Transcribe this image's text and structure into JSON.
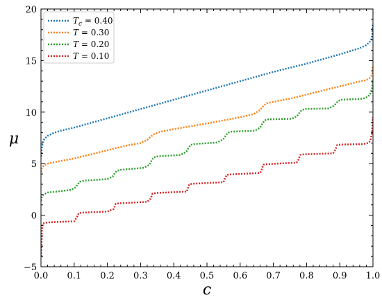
{
  "chart_data": {
    "type": "line",
    "xlabel": "c",
    "ylabel": "μ",
    "xlim": [
      0.0,
      1.0
    ],
    "ylim": [
      -5,
      20
    ],
    "xticks": [
      "0.0",
      "0.1",
      "0.2",
      "0.3",
      "0.4",
      "0.5",
      "0.6",
      "0.7",
      "0.8",
      "0.9",
      "1.0"
    ],
    "yticks": [
      "−5",
      "0",
      "5",
      "10",
      "15",
      "20"
    ],
    "legend_position": "top-left",
    "grid": false,
    "series": [
      {
        "name_var": "T",
        "name_sub": "c",
        "name_rest": " = 0.40",
        "color": "#1f77b4",
        "x": [
          0.0005,
          0.002,
          0.005,
          0.01,
          0.02,
          0.04,
          0.06,
          0.08,
          0.1,
          0.2,
          0.3,
          0.4,
          0.5,
          0.6,
          0.7,
          0.8,
          0.9,
          0.94,
          0.96,
          0.98,
          0.99,
          0.995,
          0.998,
          0.9995
        ],
        "values": [
          5.7,
          6.4,
          7.0,
          7.4,
          7.7,
          8.0,
          8.2,
          8.35,
          8.5,
          9.4,
          10.3,
          11.2,
          12.1,
          13.0,
          13.9,
          14.7,
          15.6,
          16.0,
          16.2,
          16.5,
          16.8,
          17.1,
          17.6,
          18.6
        ]
      },
      {
        "name_var": "T",
        "name_sub": "",
        "name_rest": " = 0.30",
        "color": "#ff7f0e",
        "x": [
          0.0005,
          0.002,
          0.005,
          0.01,
          0.02,
          0.05,
          0.1,
          0.15,
          0.2,
          0.25,
          0.3,
          0.32,
          0.33,
          0.34,
          0.36,
          0.4,
          0.5,
          0.6,
          0.64,
          0.66,
          0.67,
          0.68,
          0.7,
          0.75,
          0.8,
          0.85,
          0.9,
          0.95,
          0.98,
          0.99,
          0.995,
          0.998,
          0.9995
        ],
        "values": [
          4.2,
          4.5,
          4.7,
          4.85,
          5.0,
          5.2,
          5.5,
          5.9,
          6.3,
          6.7,
          7.0,
          7.3,
          7.6,
          7.85,
          8.1,
          8.35,
          8.9,
          9.5,
          9.8,
          10.2,
          10.6,
          10.85,
          11.0,
          11.3,
          11.7,
          12.1,
          12.5,
          12.9,
          13.1,
          13.3,
          13.5,
          13.8,
          14.4
        ]
      },
      {
        "name_var": "T",
        "name_sub": "",
        "name_rest": " = 0.20",
        "color": "#2ca02c",
        "x": [
          0.0005,
          0.002,
          0.005,
          0.01,
          0.02,
          0.05,
          0.09,
          0.105,
          0.111,
          0.117,
          0.13,
          0.2,
          0.216,
          0.222,
          0.228,
          0.24,
          0.31,
          0.327,
          0.333,
          0.339,
          0.35,
          0.42,
          0.438,
          0.444,
          0.45,
          0.46,
          0.53,
          0.549,
          0.556,
          0.563,
          0.573,
          0.645,
          0.66,
          0.667,
          0.674,
          0.685,
          0.755,
          0.771,
          0.778,
          0.785,
          0.795,
          0.865,
          0.882,
          0.889,
          0.896,
          0.906,
          0.97,
          0.985,
          0.992,
          0.997,
          0.9995
        ],
        "values": [
          1.4,
          1.7,
          1.9,
          2.05,
          2.2,
          2.3,
          2.45,
          2.7,
          3.0,
          3.25,
          3.35,
          3.5,
          3.75,
          4.05,
          4.3,
          4.4,
          4.6,
          4.9,
          5.3,
          5.6,
          5.7,
          5.85,
          6.15,
          6.5,
          6.8,
          6.9,
          7.05,
          7.35,
          7.7,
          8.0,
          8.1,
          8.2,
          8.5,
          8.9,
          9.2,
          9.3,
          9.35,
          9.6,
          9.9,
          10.2,
          10.3,
          10.35,
          10.6,
          10.85,
          11.1,
          11.2,
          11.3,
          11.5,
          11.8,
          12.3,
          13.0
        ]
      },
      {
        "name_var": "T",
        "name_sub": "",
        "name_rest": " = 0.10",
        "color": "#d62728",
        "x": [
          0.0005,
          0.003,
          0.006,
          0.02,
          0.05,
          0.1,
          0.108,
          0.111,
          0.114,
          0.125,
          0.2,
          0.219,
          0.222,
          0.225,
          0.235,
          0.32,
          0.33,
          0.333,
          0.336,
          0.346,
          0.44,
          0.441,
          0.444,
          0.447,
          0.457,
          0.55,
          0.552,
          0.556,
          0.559,
          0.569,
          0.66,
          0.664,
          0.667,
          0.67,
          0.68,
          0.77,
          0.775,
          0.778,
          0.781,
          0.791,
          0.88,
          0.886,
          0.889,
          0.892,
          0.902,
          0.97,
          0.985,
          0.992,
          0.997,
          0.9995
        ],
        "values": [
          -4.0,
          -1.5,
          -0.8,
          -0.7,
          -0.65,
          -0.6,
          -0.2,
          0.0,
          0.2,
          0.25,
          0.35,
          0.6,
          0.85,
          1.1,
          1.15,
          1.3,
          1.6,
          1.85,
          2.1,
          2.15,
          2.3,
          2.5,
          2.75,
          3.0,
          3.05,
          3.2,
          3.45,
          3.65,
          3.9,
          3.95,
          4.1,
          4.35,
          4.65,
          4.9,
          4.95,
          5.1,
          5.35,
          5.6,
          5.85,
          5.9,
          6.0,
          6.3,
          6.55,
          6.8,
          6.85,
          6.9,
          7.0,
          7.2,
          8.0,
          9.5
        ]
      }
    ]
  }
}
